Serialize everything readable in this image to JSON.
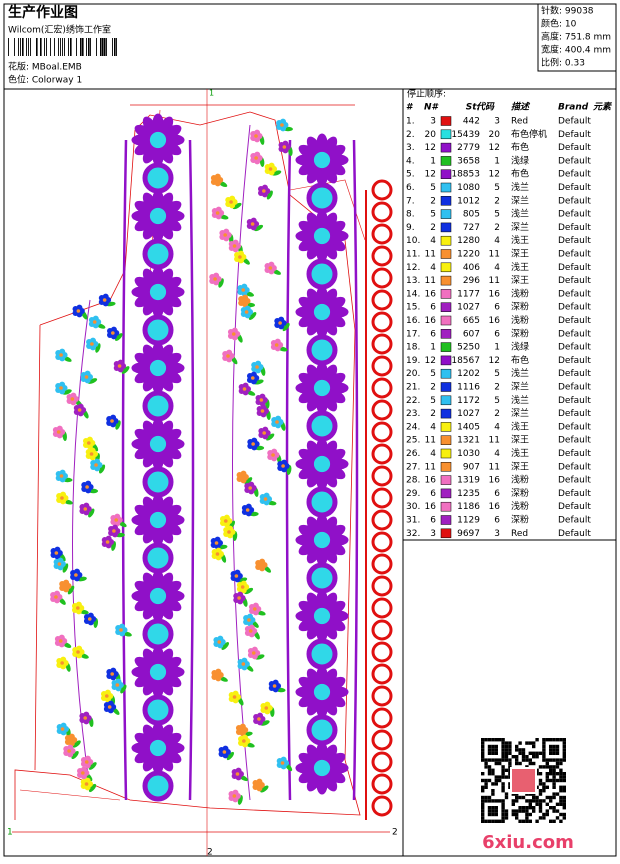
{
  "header": {
    "title": "生产作业图",
    "studio": "Wilcom(汇宏)绣饰工作室",
    "design": "花版: MBoal.EMB",
    "colorway": "色位: Colorway 1"
  },
  "stats": [
    "针数: 99038",
    "颜色: 10",
    "高度: 751.8 mm",
    "宽度: 400.4 mm",
    "比例: 0.33"
  ],
  "markers": {
    "top": "1",
    "bottom": "2",
    "left": "1",
    "right": "2"
  },
  "table": {
    "title": "停止顺序:",
    "columns": [
      "#",
      "N#",
      "St.",
      "代码",
      "描述",
      "Brand",
      "元素"
    ],
    "rows": [
      [
        "1.",
        "3",
        "#e01010",
        "442",
        "3",
        "Red",
        "Default"
      ],
      [
        "2.",
        "20",
        "#28e0e0",
        "15439",
        "20",
        "布色停机",
        "Default"
      ],
      [
        "3.",
        "12",
        "#9010c8",
        "2779",
        "12",
        "布色",
        "Default"
      ],
      [
        "4.",
        "1",
        "#20c020",
        "3658",
        "1",
        "浅绿",
        "Default"
      ],
      [
        "5.",
        "12",
        "#9010c8",
        "18853",
        "12",
        "布色",
        "Default"
      ],
      [
        "6.",
        "5",
        "#30c0f0",
        "1080",
        "5",
        "浅兰",
        "Default"
      ],
      [
        "7.",
        "2",
        "#1030e0",
        "1012",
        "2",
        "深兰",
        "Default"
      ],
      [
        "8.",
        "5",
        "#30c0f0",
        "805",
        "5",
        "浅兰",
        "Default"
      ],
      [
        "9.",
        "2",
        "#1030e0",
        "727",
        "2",
        "深兰",
        "Default"
      ],
      [
        "10.",
        "4",
        "#f8f010",
        "1280",
        "4",
        "浅王",
        "Default"
      ],
      [
        "11.",
        "11",
        "#f89030",
        "1220",
        "11",
        "深王",
        "Default"
      ],
      [
        "12.",
        "4",
        "#f8f010",
        "406",
        "4",
        "浅王",
        "Default"
      ],
      [
        "13.",
        "11",
        "#f89030",
        "296",
        "11",
        "深王",
        "Default"
      ],
      [
        "14.",
        "16",
        "#f070c0",
        "1177",
        "16",
        "浅粉",
        "Default"
      ],
      [
        "15.",
        "6",
        "#a020c0",
        "1027",
        "6",
        "深粉",
        "Default"
      ],
      [
        "16.",
        "16",
        "#f070c0",
        "665",
        "16",
        "浅粉",
        "Default"
      ],
      [
        "17.",
        "6",
        "#a020c0",
        "607",
        "6",
        "深粉",
        "Default"
      ],
      [
        "18.",
        "1",
        "#20c020",
        "5250",
        "1",
        "浅绿",
        "Default"
      ],
      [
        "19.",
        "12",
        "#9010c8",
        "18567",
        "12",
        "布色",
        "Default"
      ],
      [
        "20.",
        "5",
        "#30c0f0",
        "1202",
        "5",
        "浅兰",
        "Default"
      ],
      [
        "21.",
        "2",
        "#1030e0",
        "1116",
        "2",
        "深兰",
        "Default"
      ],
      [
        "22.",
        "5",
        "#30c0f0",
        "1172",
        "5",
        "浅兰",
        "Default"
      ],
      [
        "23.",
        "2",
        "#1030e0",
        "1027",
        "2",
        "深兰",
        "Default"
      ],
      [
        "24.",
        "4",
        "#f8f010",
        "1405",
        "4",
        "浅王",
        "Default"
      ],
      [
        "25.",
        "11",
        "#f89030",
        "1321",
        "11",
        "深王",
        "Default"
      ],
      [
        "26.",
        "4",
        "#f8f010",
        "1030",
        "4",
        "浅王",
        "Default"
      ],
      [
        "27.",
        "11",
        "#f89030",
        "907",
        "11",
        "深王",
        "Default"
      ],
      [
        "28.",
        "16",
        "#f070c0",
        "1319",
        "16",
        "浅粉",
        "Default"
      ],
      [
        "29.",
        "6",
        "#a020c0",
        "1235",
        "6",
        "深粉",
        "Default"
      ],
      [
        "30.",
        "16",
        "#f070c0",
        "1186",
        "16",
        "浅粉",
        "Default"
      ],
      [
        "31.",
        "6",
        "#a020c0",
        "1129",
        "6",
        "深粉",
        "Default"
      ],
      [
        "32.",
        "3",
        "#e01010",
        "9697",
        "3",
        "Red",
        "Default"
      ]
    ]
  },
  "watermark": "6xiu.com"
}
